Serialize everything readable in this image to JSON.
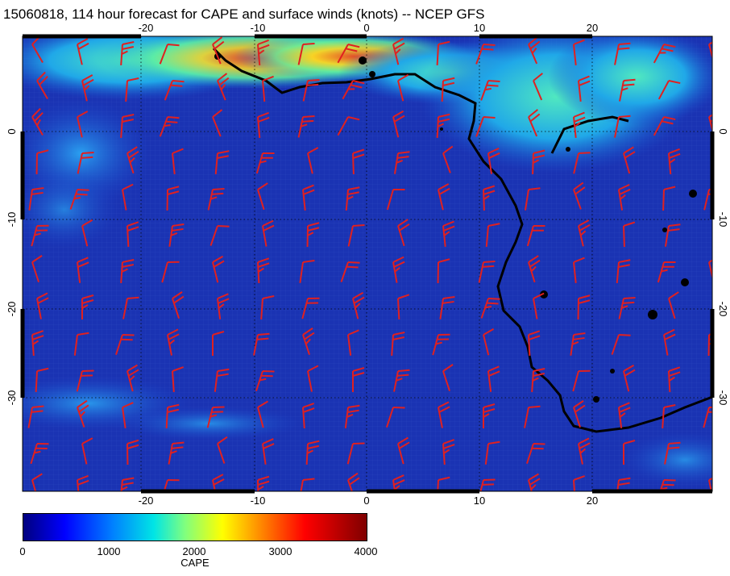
{
  "title": "15060818, 114 hour forecast for CAPE and surface winds (knots) -- NCEP GFS",
  "map": {
    "lon_range": [
      -30,
      31
    ],
    "lat_range": [
      -40,
      9
    ],
    "lon_ticks": [
      "-20",
      "-10",
      "0",
      "10",
      "20"
    ],
    "lat_ticks": [
      "0",
      "-10",
      "-20",
      "-30"
    ],
    "ocean_color": "#1a33b3",
    "coast_color": "#000000",
    "wind_barb_color": "#e02020",
    "high_cape_colors": [
      "#22b8d8",
      "#7cf0a0",
      "#f0e040",
      "#ff6020",
      "#d01010"
    ]
  },
  "colorbar": {
    "label": "CAPE",
    "ticks": [
      "0",
      "1000",
      "2000",
      "3000",
      "4000"
    ],
    "range": [
      0,
      4000
    ]
  }
}
